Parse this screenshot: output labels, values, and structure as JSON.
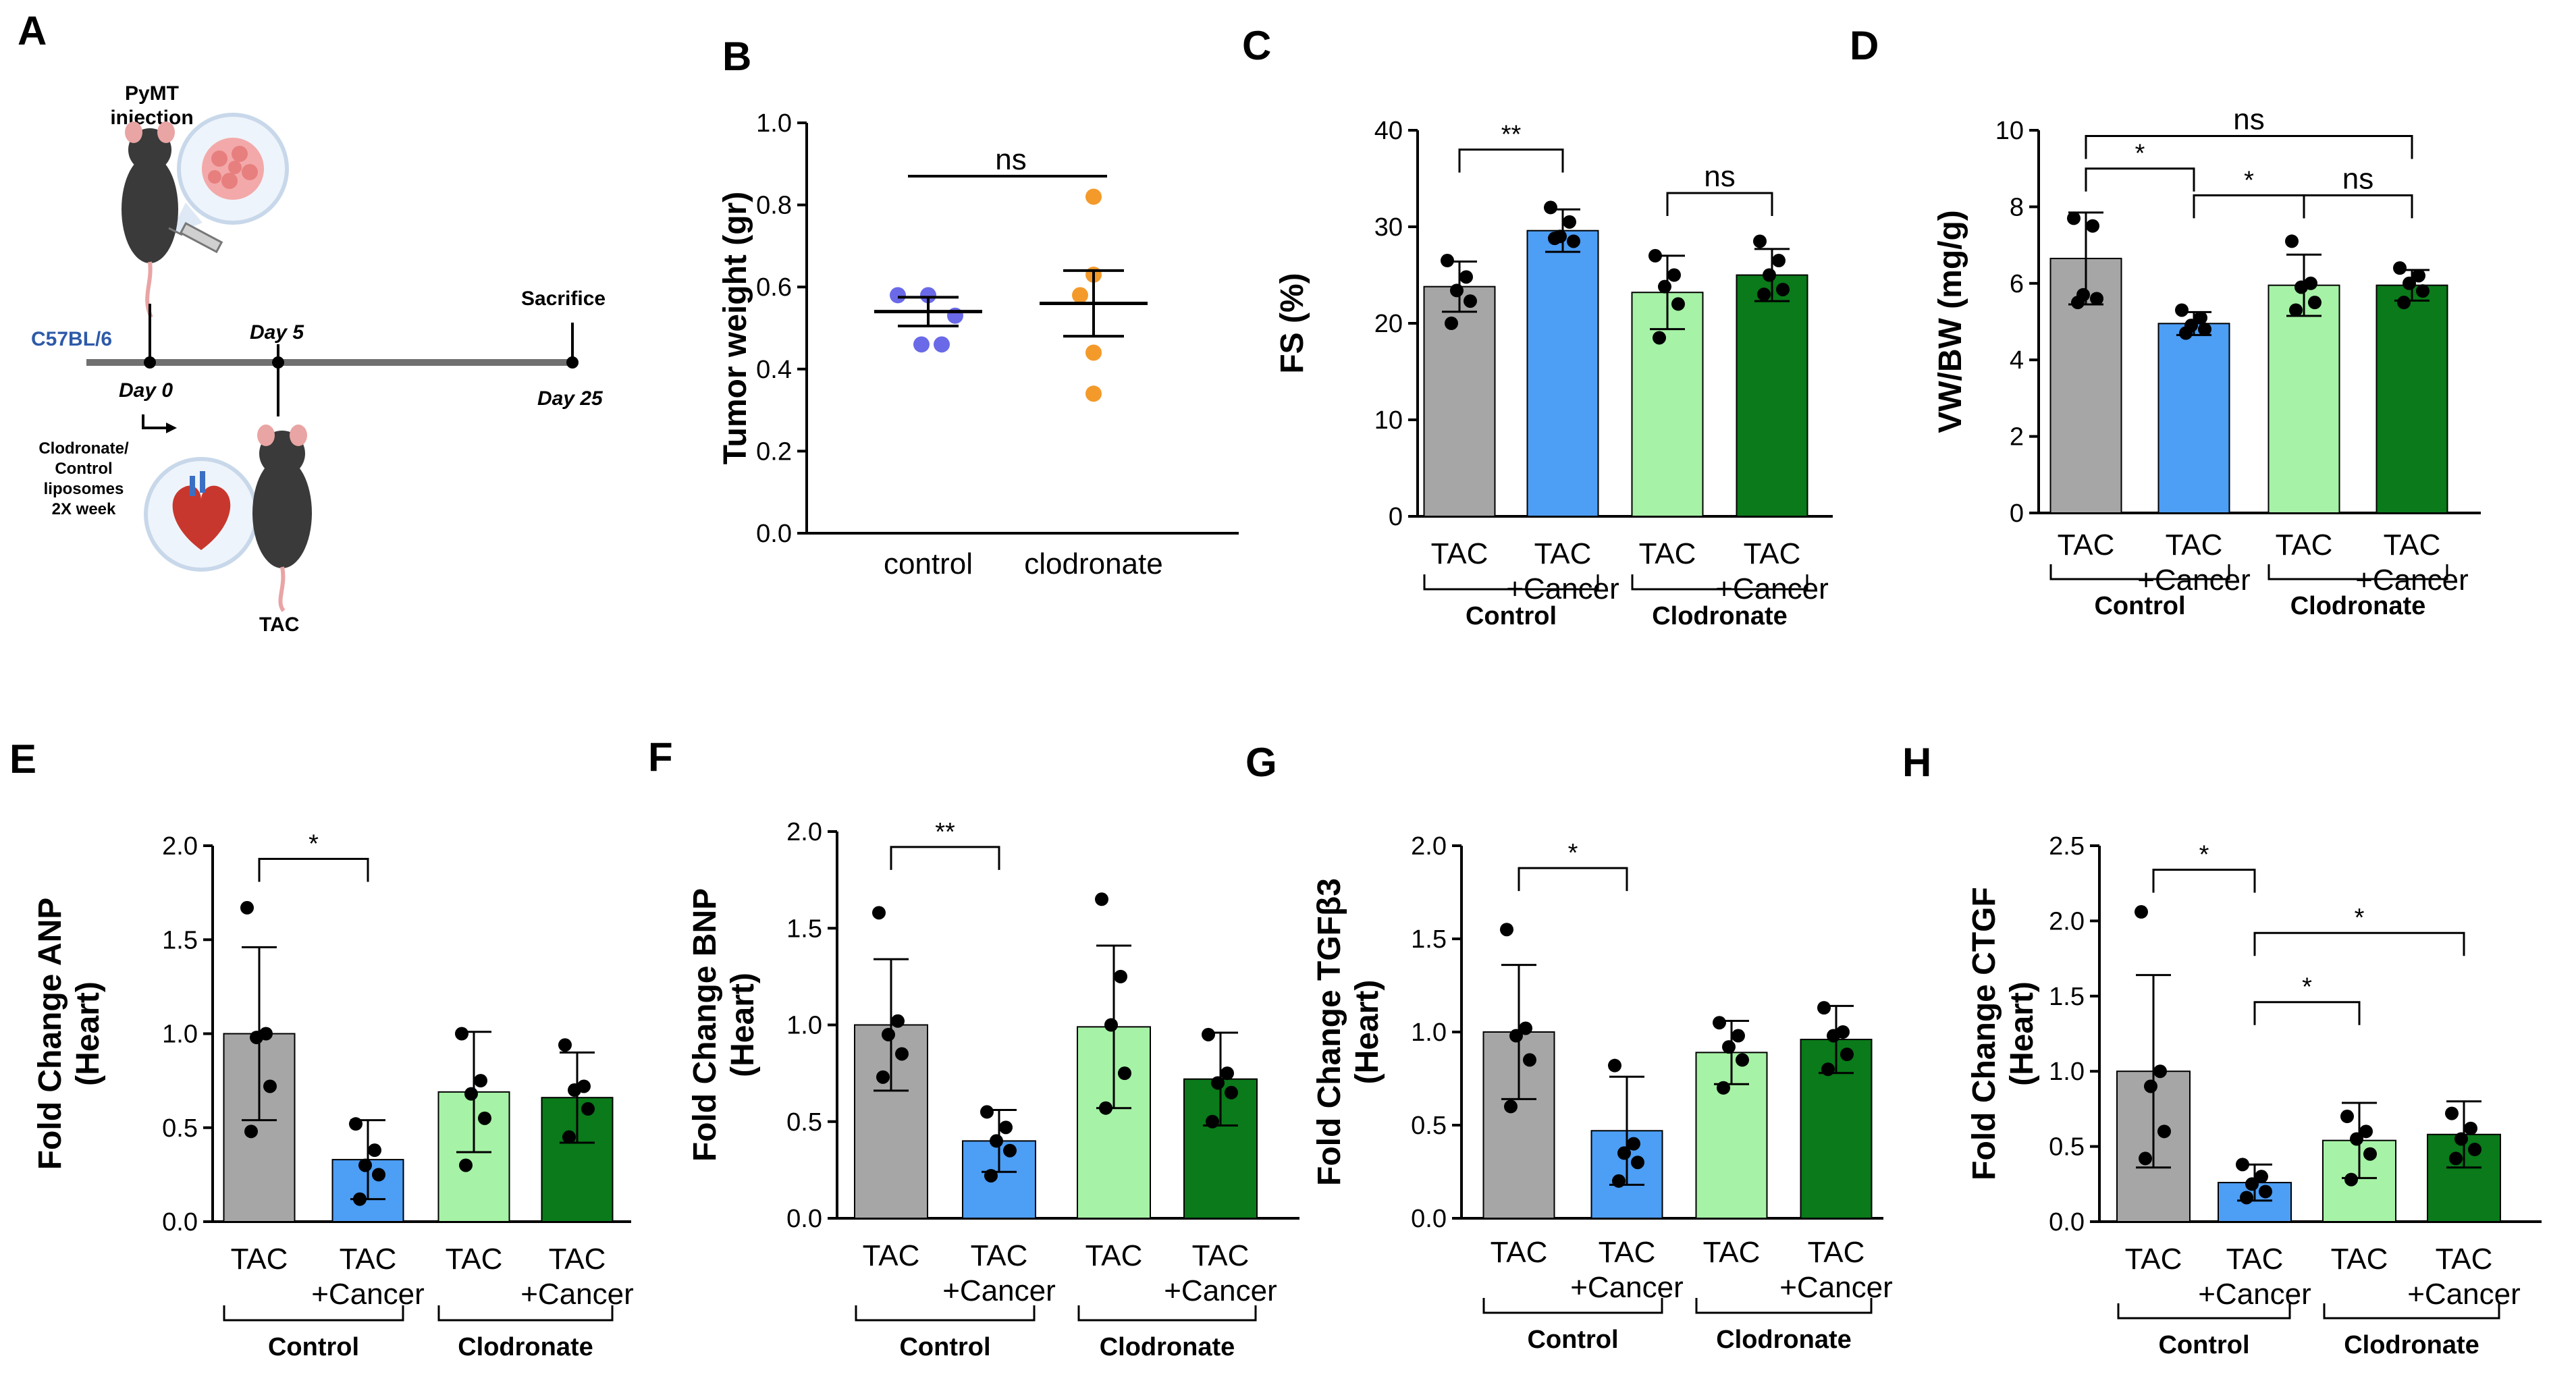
{
  "panel_labels": {
    "A": "A",
    "B": "B",
    "C": "C",
    "D": "D",
    "E": "E",
    "F": "F",
    "G": "G",
    "H": "H"
  },
  "schematic": {
    "injection": "PyMT\ninjection",
    "strain": "C57BL/6",
    "day0": "Day 0",
    "day5": "Day 5",
    "day25": "Day 25",
    "sacrifice": "Sacrifice",
    "treatment": "Clodronate/\nControl\nliposomes\n2X week",
    "tac": "TAC",
    "colors": {
      "strain": "#2e5aa8",
      "timeline": "#707070"
    }
  },
  "chart_data": [
    {
      "id": "B",
      "type": "scatter",
      "ylabel": "Tumor weight (gr)",
      "ylim": [
        0,
        1.0
      ],
      "yticks": [
        "0.0",
        "0.2",
        "0.4",
        "0.6",
        "0.8",
        "1.0"
      ],
      "categories": [
        "control",
        "clodronate"
      ],
      "colors": [
        "#6a6ae8",
        "#f39a2b"
      ],
      "points": [
        [
          0.58,
          0.58,
          0.53,
          0.46,
          0.46
        ],
        [
          0.82,
          0.63,
          0.58,
          0.44,
          0.34
        ]
      ],
      "mean": [
        0.54,
        0.56
      ],
      "sem": [
        0.035,
        0.08
      ],
      "annotations": [
        {
          "text": "ns",
          "from": 0,
          "to": 1,
          "y": 0.87
        }
      ]
    },
    {
      "id": "C",
      "type": "bar",
      "ylabel": "FS (%)",
      "ylim": [
        0,
        40
      ],
      "yticks": [
        "0",
        "10",
        "20",
        "30",
        "40"
      ],
      "categories": [
        "TAC",
        "TAC\n+Cancer",
        "TAC",
        "TAC\n+Cancer"
      ],
      "groups": [
        {
          "label": "Control",
          "from": 0,
          "to": 1
        },
        {
          "label": "Clodronate",
          "from": 2,
          "to": 3
        }
      ],
      "colors": [
        "#a6a6a6",
        "#4d9ef5",
        "#a6f2a6",
        "#0a7a1a"
      ],
      "values": [
        23.8,
        29.6,
        23.2,
        25.0
      ],
      "errors": [
        2.6,
        2.2,
        3.8,
        2.7
      ],
      "points": [
        [
          26.5,
          24.8,
          23.4,
          22.3,
          20.0
        ],
        [
          32.0,
          30.5,
          29.0,
          28.5,
          28.8
        ],
        [
          27.0,
          25.0,
          23.8,
          22.0,
          18.5
        ],
        [
          28.5,
          26.5,
          25.0,
          23.5,
          23.0
        ]
      ],
      "annotations": [
        {
          "text": "**",
          "from": 0,
          "to": 1,
          "y": 38.0
        },
        {
          "text": "ns",
          "from": 2,
          "to": 3,
          "y": 33.5
        }
      ]
    },
    {
      "id": "D",
      "type": "bar",
      "ylabel": "VW/BW (mg/g)",
      "ylim": [
        0,
        10
      ],
      "yticks": [
        "0",
        "2",
        "4",
        "6",
        "8",
        "10"
      ],
      "categories": [
        "TAC",
        "TAC\n+Cancer",
        "TAC",
        "TAC\n+Cancer"
      ],
      "groups": [
        {
          "label": "Control",
          "from": 0,
          "to": 1
        },
        {
          "label": "Clodronate",
          "from": 2,
          "to": 3
        }
      ],
      "colors": [
        "#a6a6a6",
        "#4d9ef5",
        "#a6f2a6",
        "#0a7a1a"
      ],
      "values": [
        6.65,
        4.95,
        5.95,
        5.95
      ],
      "errors": [
        1.2,
        0.3,
        0.8,
        0.4
      ],
      "points": [
        [
          7.7,
          7.5,
          5.7,
          5.6,
          5.5
        ],
        [
          5.3,
          5.1,
          4.9,
          4.8,
          4.7
        ],
        [
          7.1,
          6.0,
          5.9,
          5.5,
          5.3
        ],
        [
          6.4,
          6.2,
          6.0,
          5.8,
          5.5
        ]
      ],
      "annotations": [
        {
          "text": "ns",
          "from": 0,
          "to": 3,
          "y": 9.85
        },
        {
          "text": "*",
          "from": 0,
          "to": 1,
          "y": 9.0
        },
        {
          "text": "*",
          "from": 1,
          "to": 2,
          "y": 8.3
        },
        {
          "text": "ns",
          "from": 2,
          "to": 3,
          "y": 8.3
        }
      ]
    },
    {
      "id": "E",
      "type": "bar",
      "ylabel": "Fold Change ANP\n(Heart)",
      "ylim": [
        0,
        2.0
      ],
      "yticks": [
        "0.0",
        "0.5",
        "1.0",
        "1.5",
        "2.0"
      ],
      "categories": [
        "TAC",
        "TAC\n+Cancer",
        "TAC",
        "TAC\n+Cancer"
      ],
      "groups": [
        {
          "label": "Control",
          "from": 0,
          "to": 1
        },
        {
          "label": "Clodronate",
          "from": 2,
          "to": 3
        }
      ],
      "colors": [
        "#a6a6a6",
        "#4d9ef5",
        "#a6f2a6",
        "#0a7a1a"
      ],
      "values": [
        1.0,
        0.33,
        0.69,
        0.66
      ],
      "errors": [
        0.46,
        0.21,
        0.32,
        0.24
      ],
      "points": [
        [
          1.67,
          1.0,
          0.98,
          0.72,
          0.48
        ],
        [
          0.52,
          0.38,
          0.3,
          0.25,
          0.12
        ],
        [
          1.0,
          0.75,
          0.68,
          0.55,
          0.3
        ],
        [
          0.94,
          0.72,
          0.7,
          0.6,
          0.45
        ]
      ],
      "annotations": [
        {
          "text": "*",
          "from": 0,
          "to": 1,
          "y": 1.93
        }
      ]
    },
    {
      "id": "F",
      "type": "bar",
      "ylabel": "Fold Change BNP\n(Heart)",
      "ylim": [
        0,
        2.0
      ],
      "yticks": [
        "0.0",
        "0.5",
        "1.0",
        "1.5",
        "2.0"
      ],
      "categories": [
        "TAC",
        "TAC\n+Cancer",
        "TAC",
        "TAC\n+Cancer"
      ],
      "groups": [
        {
          "label": "Control",
          "from": 0,
          "to": 1
        },
        {
          "label": "Clodronate",
          "from": 2,
          "to": 3
        }
      ],
      "colors": [
        "#a6a6a6",
        "#4d9ef5",
        "#a6f2a6",
        "#0a7a1a"
      ],
      "values": [
        1.0,
        0.4,
        0.99,
        0.72
      ],
      "errors": [
        0.34,
        0.16,
        0.42,
        0.24
      ],
      "points": [
        [
          1.58,
          1.02,
          0.95,
          0.85,
          0.73
        ],
        [
          0.55,
          0.47,
          0.4,
          0.35,
          0.22
        ],
        [
          1.65,
          1.25,
          1.0,
          0.75,
          0.57
        ],
        [
          0.95,
          0.75,
          0.7,
          0.65,
          0.5
        ]
      ],
      "annotations": [
        {
          "text": "**",
          "from": 0,
          "to": 1,
          "y": 1.92
        }
      ]
    },
    {
      "id": "G",
      "type": "bar",
      "ylabel": "Fold Change TGFβ3\n(Heart)",
      "ylim": [
        0,
        2.0
      ],
      "yticks": [
        "0.0",
        "0.5",
        "1.0",
        "1.5",
        "2.0"
      ],
      "categories": [
        "TAC",
        "TAC\n+Cancer",
        "TAC",
        "TAC\n+Cancer"
      ],
      "groups": [
        {
          "label": "Control",
          "from": 0,
          "to": 1
        },
        {
          "label": "Clodronate",
          "from": 2,
          "to": 3
        }
      ],
      "colors": [
        "#a6a6a6",
        "#4d9ef5",
        "#a6f2a6",
        "#0a7a1a"
      ],
      "values": [
        1.0,
        0.47,
        0.89,
        0.96
      ],
      "errors": [
        0.36,
        0.29,
        0.17,
        0.18
      ],
      "points": [
        [
          1.55,
          1.02,
          0.98,
          0.85,
          0.6
        ],
        [
          0.82,
          0.4,
          0.35,
          0.3,
          0.2
        ],
        [
          1.05,
          0.98,
          0.92,
          0.85,
          0.7
        ],
        [
          1.13,
          1.0,
          0.98,
          0.88,
          0.8
        ]
      ],
      "annotations": [
        {
          "text": "*",
          "from": 0,
          "to": 1,
          "y": 1.88
        }
      ]
    },
    {
      "id": "H",
      "type": "bar",
      "ylabel": "Fold Change CTGF\n(Heart)",
      "ylim": [
        0,
        2.5
      ],
      "yticks": [
        "0.0",
        "0.5",
        "1.0",
        "1.5",
        "2.0",
        "2.5"
      ],
      "categories": [
        "TAC",
        "TAC\n+Cancer",
        "TAC",
        "TAC\n+Cancer"
      ],
      "groups": [
        {
          "label": "Control",
          "from": 0,
          "to": 1
        },
        {
          "label": "Clodronate",
          "from": 2,
          "to": 3
        }
      ],
      "colors": [
        "#a6a6a6",
        "#4d9ef5",
        "#a6f2a6",
        "#0a7a1a"
      ],
      "values": [
        1.0,
        0.26,
        0.54,
        0.58
      ],
      "errors": [
        0.64,
        0.12,
        0.25,
        0.22
      ],
      "points": [
        [
          2.06,
          1.0,
          0.9,
          0.6,
          0.42
        ],
        [
          0.38,
          0.3,
          0.25,
          0.2,
          0.16
        ],
        [
          0.7,
          0.6,
          0.55,
          0.45,
          0.28
        ],
        [
          0.72,
          0.62,
          0.55,
          0.48,
          0.42
        ]
      ],
      "annotations": [
        {
          "text": "*",
          "from": 0,
          "to": 1,
          "y": 2.34
        },
        {
          "text": "*",
          "from": 1,
          "to": 3,
          "y": 1.92
        },
        {
          "text": "*",
          "from": 1,
          "to": 2,
          "y": 1.46
        }
      ]
    }
  ]
}
